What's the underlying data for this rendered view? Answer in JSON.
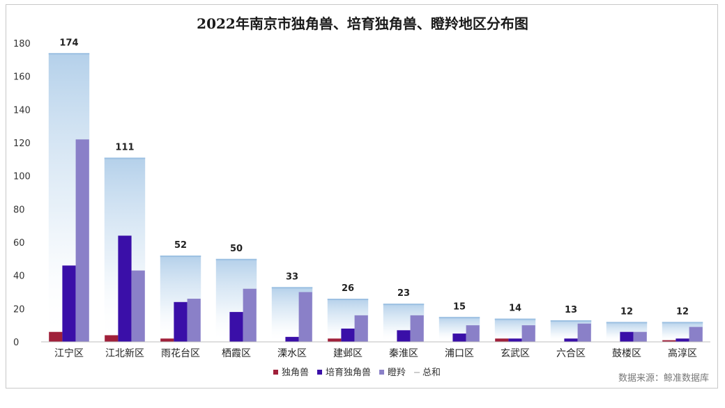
{
  "chart_data": {
    "type": "bar",
    "title": "2022年南京市独角兽、培育独角兽、瞪羚地区分布图",
    "categories": [
      "江宁区",
      "江北新区",
      "雨花台区",
      "栖霞区",
      "溧水区",
      "建邺区",
      "秦淮区",
      "浦口区",
      "玄武区",
      "六合区",
      "鼓楼区",
      "高淳区"
    ],
    "series": [
      {
        "name": "独角兽",
        "color": "#a0203a",
        "values": [
          6,
          4,
          2,
          0,
          0,
          2,
          0,
          0,
          2,
          0,
          0,
          1
        ]
      },
      {
        "name": "培育独角兽",
        "color": "#3a0fa8",
        "values": [
          46,
          64,
          24,
          18,
          3,
          8,
          7,
          5,
          2,
          2,
          6,
          2
        ]
      },
      {
        "name": "瞪羚",
        "color": "#8a80c8",
        "values": [
          122,
          43,
          26,
          32,
          30,
          16,
          16,
          10,
          10,
          11,
          6,
          9
        ]
      },
      {
        "name": "总和",
        "color": "#bcd6ec",
        "values": [
          174,
          111,
          52,
          50,
          33,
          26,
          23,
          15,
          14,
          13,
          12,
          12
        ]
      }
    ],
    "ylim": [
      0,
      180
    ],
    "yticks": [
      0,
      20,
      40,
      60,
      80,
      100,
      120,
      140,
      160,
      180
    ],
    "grid": false,
    "legend_position": "bottom-center",
    "source": "数据来源：鲸准数据库"
  }
}
